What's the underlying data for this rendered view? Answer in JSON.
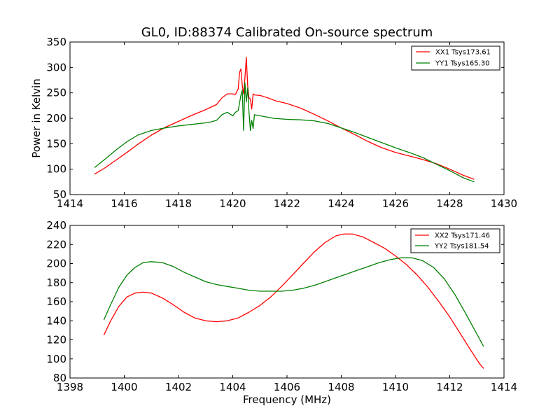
{
  "chart_data": [
    {
      "type": "line",
      "title": "GL0, ID:88374 Calibrated On-source spectrum",
      "xlabel": "",
      "ylabel": "Power in Kelvin",
      "xlim": [
        1414,
        1430
      ],
      "ylim": [
        50,
        350
      ],
      "xticks": [
        1414,
        1416,
        1418,
        1420,
        1422,
        1424,
        1426,
        1428,
        1430
      ],
      "yticks": [
        50,
        100,
        150,
        200,
        250,
        300,
        350
      ],
      "grid": false,
      "legend": "top-right",
      "series": [
        {
          "name": "XX1 Tsys173.61",
          "color": "#ff0000",
          "x": [
            1414.9,
            1415.3,
            1415.7,
            1416.1,
            1416.5,
            1417.0,
            1417.5,
            1418.0,
            1418.5,
            1419.0,
            1419.4,
            1419.6,
            1419.8,
            1420.0,
            1420.1,
            1420.2,
            1420.25,
            1420.3,
            1420.35,
            1420.4,
            1420.45,
            1420.5,
            1420.55,
            1420.6,
            1420.65,
            1420.7,
            1420.75,
            1420.8,
            1421.0,
            1421.3,
            1421.6,
            1422.0,
            1422.5,
            1423.0,
            1423.5,
            1424.0,
            1424.5,
            1425.0,
            1425.5,
            1426.0,
            1426.5,
            1427.0,
            1427.5,
            1428.0,
            1428.5,
            1428.9
          ],
          "y": [
            90,
            103,
            118,
            133,
            149,
            167,
            182,
            194,
            206,
            217,
            227,
            240,
            248,
            248,
            247,
            258,
            290,
            297,
            265,
            248,
            280,
            320,
            265,
            240,
            238,
            218,
            248,
            246,
            245,
            240,
            234,
            229,
            220,
            208,
            195,
            181,
            168,
            154,
            142,
            133,
            126,
            119,
            111,
            100,
            88,
            80
          ]
        },
        {
          "name": "YY1 Tsys165.30",
          "color": "#008000",
          "x": [
            1414.9,
            1415.3,
            1415.7,
            1416.1,
            1416.5,
            1417.0,
            1417.5,
            1418.0,
            1418.5,
            1419.0,
            1419.2,
            1419.4,
            1419.6,
            1419.8,
            1420.0,
            1420.1,
            1420.2,
            1420.3,
            1420.35,
            1420.4,
            1420.45,
            1420.5,
            1420.55,
            1420.6,
            1420.65,
            1420.7,
            1420.75,
            1420.8,
            1421.0,
            1421.5,
            1422.0,
            1422.5,
            1423.0,
            1423.5,
            1424.0,
            1424.5,
            1425.0,
            1425.5,
            1426.0,
            1426.5,
            1427.0,
            1427.5,
            1428.0,
            1428.5,
            1428.9
          ],
          "y": [
            103,
            120,
            138,
            154,
            167,
            176,
            181,
            185,
            188,
            191,
            193,
            196,
            207,
            212,
            205,
            212,
            215,
            245,
            255,
            176,
            270,
            232,
            260,
            213,
            176,
            196,
            180,
            207,
            205,
            200,
            198,
            197,
            195,
            190,
            181,
            172,
            162,
            152,
            142,
            133,
            123,
            110,
            97,
            83,
            75
          ]
        }
      ]
    },
    {
      "type": "line",
      "title": "",
      "xlabel": "Frequency (MHz)",
      "ylabel": "",
      "xlim": [
        1398,
        1414
      ],
      "ylim": [
        80,
        240
      ],
      "xticks": [
        1398,
        1400,
        1402,
        1404,
        1406,
        1408,
        1410,
        1412,
        1414
      ],
      "yticks": [
        80,
        100,
        120,
        140,
        160,
        180,
        200,
        220,
        240
      ],
      "grid": false,
      "legend": "top-right",
      "series": [
        {
          "name": "XX2 Tsys171.46",
          "color": "#ff0000",
          "x": [
            1399.25,
            1399.5,
            1399.8,
            1400.1,
            1400.4,
            1400.7,
            1401.0,
            1401.4,
            1401.8,
            1402.2,
            1402.6,
            1403.0,
            1403.4,
            1403.8,
            1404.2,
            1404.6,
            1405.0,
            1405.4,
            1405.8,
            1406.2,
            1406.6,
            1407.0,
            1407.4,
            1407.8,
            1408.1,
            1408.4,
            1408.8,
            1409.2,
            1409.6,
            1410.0,
            1410.4,
            1410.8,
            1411.2,
            1411.6,
            1412.0,
            1412.4,
            1412.8,
            1413.1,
            1413.25
          ],
          "y": [
            125,
            140,
            155,
            165,
            169,
            170,
            169,
            164,
            157,
            149,
            143,
            140,
            139,
            140,
            143,
            149,
            156,
            165,
            176,
            188,
            200,
            212,
            222,
            229,
            231,
            231,
            228,
            222,
            216,
            208,
            199,
            188,
            175,
            160,
            144,
            126,
            108,
            95,
            90
          ]
        },
        {
          "name": "YY2 Tsys181.54",
          "color": "#008000",
          "x": [
            1399.25,
            1399.5,
            1399.8,
            1400.1,
            1400.4,
            1400.7,
            1401.0,
            1401.4,
            1401.8,
            1402.2,
            1402.6,
            1403.0,
            1403.4,
            1403.8,
            1404.2,
            1404.6,
            1405.0,
            1405.4,
            1405.8,
            1406.2,
            1406.6,
            1407.0,
            1407.4,
            1407.8,
            1408.2,
            1408.6,
            1409.0,
            1409.4,
            1409.8,
            1410.2,
            1410.6,
            1411.0,
            1411.4,
            1411.8,
            1412.2,
            1412.6,
            1413.0,
            1413.25
          ],
          "y": [
            141,
            157,
            175,
            188,
            196,
            201,
            202,
            201,
            197,
            191,
            186,
            181,
            178,
            176,
            174,
            172,
            171,
            171,
            171,
            172,
            174,
            177,
            181,
            185,
            189,
            193,
            197,
            201,
            204,
            206,
            206,
            203,
            196,
            184,
            167,
            147,
            126,
            113
          ]
        }
      ]
    }
  ]
}
